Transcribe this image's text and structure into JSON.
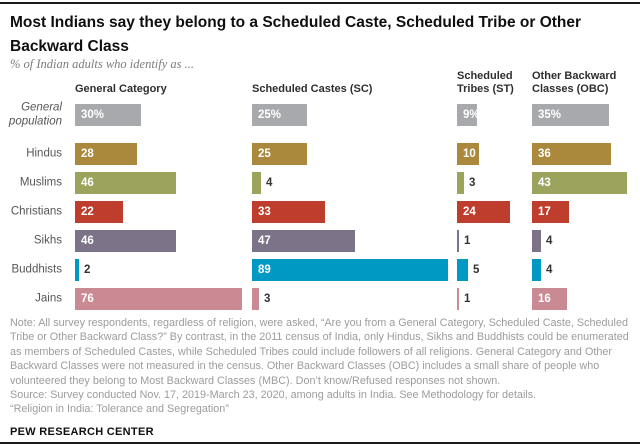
{
  "header": {
    "title": "Most Indians say they belong to a Scheduled Caste, Scheduled Tribe or Other Backward Class",
    "subtitle": "% of Indian adults who identify as ..."
  },
  "chart_data": {
    "type": "bar",
    "orientation": "horizontal",
    "value_unit": "% of adults",
    "categories": [
      "General population",
      "Hindus",
      "Muslims",
      "Christians",
      "Sikhs",
      "Buddhists",
      "Jains"
    ],
    "category_colors": [
      "#a7a9ac",
      "#aa893c",
      "#9ba35d",
      "#bf3d2c",
      "#7d7388",
      "#0099c3",
      "#c98a94"
    ],
    "series": [
      {
        "name": "General Category",
        "values": [
          30,
          28,
          46,
          22,
          46,
          2,
          76
        ]
      },
      {
        "name": "Scheduled Castes (SC)",
        "values": [
          25,
          25,
          4,
          33,
          47,
          89,
          3
        ]
      },
      {
        "name": "Scheduled Tribes (ST)",
        "values": [
          9,
          10,
          3,
          24,
          1,
          5,
          1
        ]
      },
      {
        "name": "Other Backward Classes (OBC)",
        "values": [
          35,
          36,
          43,
          17,
          4,
          4,
          16
        ]
      }
    ],
    "first_row_values_show_percent_sign": true,
    "value_label_inside_threshold": 9,
    "xlim": [
      0,
      100
    ],
    "grid": false,
    "legend_position": "column headers above chart"
  },
  "notes": {
    "note": "Note: All survey respondents, regardless of religion, were asked, “Are you from a General Category, Scheduled Caste, Scheduled Tribe or Other Backward Class?” By contrast, in the 2011 census of India, only Hindus, Sikhs and Buddhists could be enumerated as members of Scheduled Castes, while Scheduled Tribes could include followers of all religions. General Category and Other Backward Classes were not measured in the census. Other Backward Classes (OBC) includes a small share of people who volunteered they belong to Most Backward Classes (MBC). Don’t know/Refused responses not shown.",
    "source": "Source: Survey conducted Nov. 17, 2019-March 23, 2020, among adults in India. See Methodology for details.",
    "report": "“Religion in India: Tolerance and Segregation”"
  },
  "footer": {
    "brand": "PEW RESEARCH CENTER"
  }
}
